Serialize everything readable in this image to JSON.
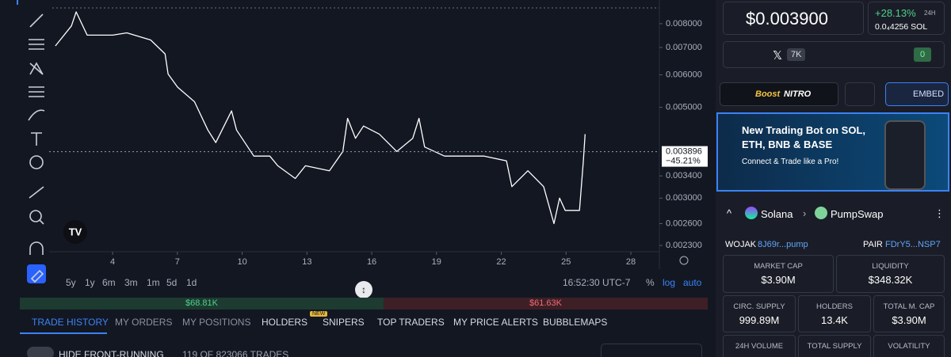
{
  "price_chart": {
    "type": "line",
    "color": "#ffffff",
    "log_scale": true,
    "x": [
      1.35,
      2.09,
      2.31,
      2.82,
      4,
      4.66,
      5.76,
      6.43,
      6.57,
      7.01,
      7.79,
      8.41,
      8.78,
      9.51,
      9.74,
      10.54,
      11.28,
      11.65,
      12.46,
      12.93,
      14.04,
      14.66,
      14.88,
      15.25,
      15.62,
      16.35,
      17.16,
      17.9,
      18.19,
      18.45,
      19.37,
      21.21,
      22.24,
      22.49,
      23.23,
      23.96,
      24.44,
      24.7,
      24.96,
      25.62,
      25.8,
      25.88
    ],
    "values": [
      0.00706,
      0.0079,
      0.00855,
      0.0075,
      0.0075,
      0.0076,
      0.0073,
      0.00675,
      0.00603,
      0.0056,
      0.00516,
      0.0044,
      0.0041,
      0.0049,
      0.0044,
      0.0038,
      0.0038,
      0.0036,
      0.00335,
      0.0036,
      0.0035,
      0.0039,
      0.0047,
      0.0042,
      0.0045,
      0.0043,
      0.0039,
      0.0042,
      0.0047,
      0.004,
      0.0038,
      0.0038,
      0.0037,
      0.0032,
      0.0035,
      0.0032,
      0.0026,
      0.003,
      0.0028,
      0.0028,
      0.0037,
      0.0043
    ],
    "xlim": [
      1.06,
      29.32
    ],
    "xticks": [
      4,
      7,
      10,
      13,
      16,
      19,
      22,
      25,
      28
    ],
    "ylim": [
      0.00222,
      0.00914
    ],
    "yticks": [
      {
        "value": 0.008,
        "label": "0.008000"
      },
      {
        "value": 0.007,
        "label": "0.007000"
      },
      {
        "value": 0.006,
        "label": "0.006000"
      },
      {
        "value": 0.005,
        "label": "0.005000"
      },
      {
        "value": 0.0034,
        "label": "0.003400"
      },
      {
        "value": 0.003,
        "label": "0.003000"
      },
      {
        "value": 0.0026,
        "label": "0.002600"
      },
      {
        "value": 0.0023,
        "label": "0.002300"
      }
    ],
    "current_price": 0.003896,
    "change_label": "−45.21%"
  },
  "timeframes": [
    "5y",
    "1y",
    "6m",
    "3m",
    "1m",
    "5d",
    "1d"
  ],
  "clock": "16:52:30 UTC-7",
  "scale_options": [
    "%",
    "log",
    "auto"
  ],
  "volume_bar": {
    "buy": "$68.81K",
    "sell": "$61.63K"
  },
  "tabs": [
    "TRADE HISTORY",
    "MY ORDERS",
    "MY POSITIONS",
    "HOLDERS",
    "SNIPERS",
    "TOP TRADERS",
    "MY PRICE ALERTS",
    "BUBBLEMAPS"
  ],
  "new_badge": "NEW",
  "trades_filter": "HIDE FRONT-RUNNING",
  "trades_count": "119 OF 823066 TRADES",
  "price": {
    "usd": "$0.003900",
    "change": "+28.13%",
    "period": "24H",
    "sol": "0.0₄4256 SOL"
  },
  "socials": {
    "x_followers": "7K",
    "security_count": "0"
  },
  "boost": {
    "word": "Boost",
    "brand": "NITRO"
  },
  "embed": "EMBED",
  "ad": {
    "title": "New Trading Bot on SOL, ETH, BNB & BASE",
    "subtitle": "Connect & Trade like a Pro!"
  },
  "pair": {
    "chain": "Solana",
    "dex": "PumpSwap",
    "token": "WOJAK",
    "token_address": "8J69r...pump",
    "pair_label": "PAIR",
    "pair_address": "FDrY5...NSP7"
  },
  "stats": [
    {
      "label": "MARKET CAP",
      "value": "$3.90M"
    },
    {
      "label": "LIQUIDITY",
      "value": "$348.32K"
    },
    {
      "label": "CIRC. SUPPLY",
      "value": "999.89M"
    },
    {
      "label": "HOLDERS",
      "value": "13.4K"
    },
    {
      "label": "TOTAL M. CAP",
      "value": "$3.90M"
    },
    {
      "label": "24H VOLUME"
    },
    {
      "label": "TOTAL SUPPLY"
    },
    {
      "label": "VOLATILITY"
    }
  ]
}
